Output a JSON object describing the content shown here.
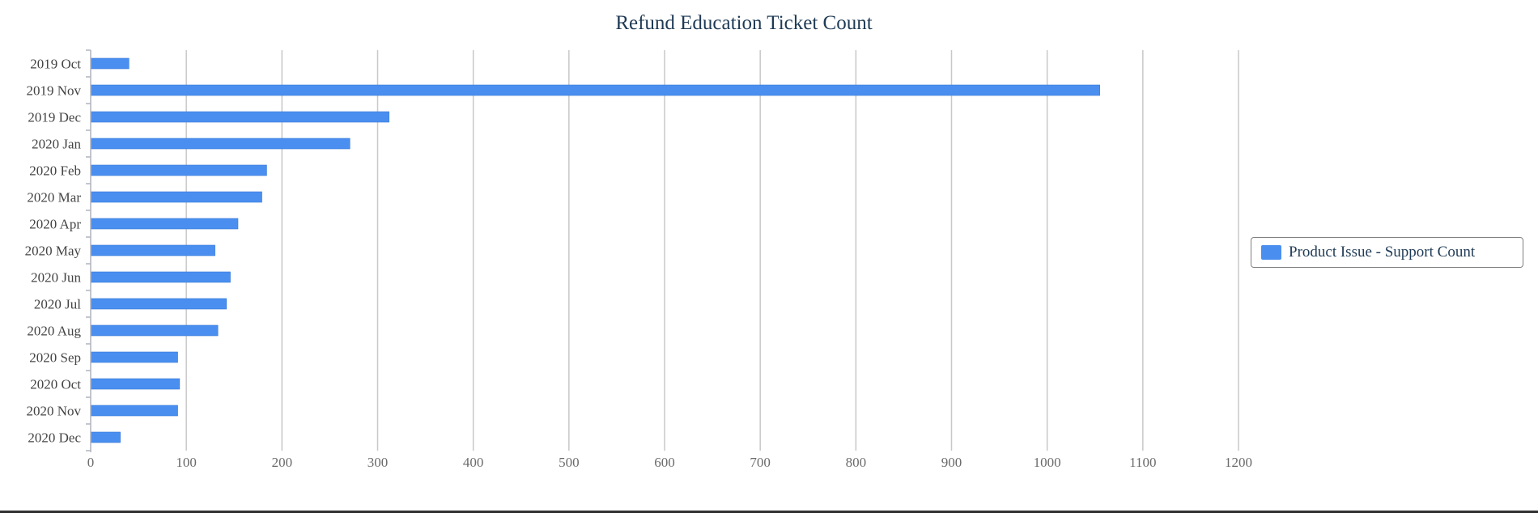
{
  "chart_data": {
    "type": "bar",
    "orientation": "horizontal",
    "title": "Refund Education Ticket Count",
    "xlabel": "",
    "ylabel": "",
    "xlim": [
      0,
      1200
    ],
    "x_ticks": [
      0,
      100,
      200,
      300,
      400,
      500,
      600,
      700,
      800,
      900,
      1000,
      1100,
      1200
    ],
    "grid": true,
    "legend_position": "right",
    "categories": [
      "2019 Oct",
      "2019 Nov",
      "2019 Dec",
      "2020 Jan",
      "2020 Feb",
      "2020 Mar",
      "2020 Apr",
      "2020 May",
      "2020 Jun",
      "2020 Jul",
      "2020 Aug",
      "2020 Sep",
      "2020 Oct",
      "2020 Nov",
      "2020 Dec"
    ],
    "series": [
      {
        "name": "Product Issue - Support Count",
        "color": "#4a8ff0",
        "values": [
          40,
          1055,
          312,
          271,
          184,
          179,
          154,
          130,
          146,
          142,
          133,
          91,
          93,
          91,
          31
        ]
      }
    ]
  }
}
